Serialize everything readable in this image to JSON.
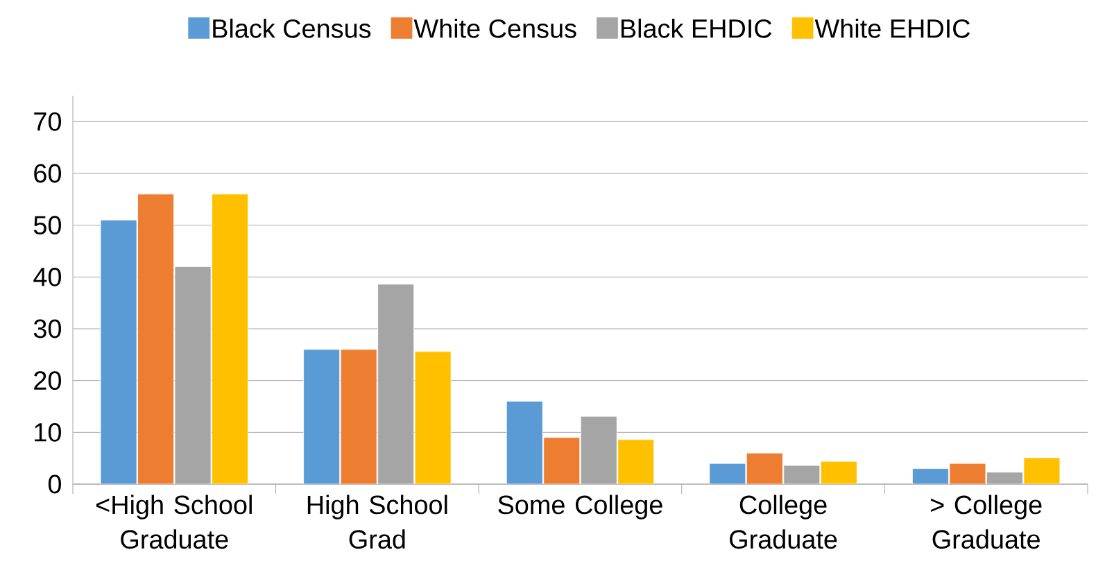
{
  "chart_data": {
    "type": "bar",
    "categories": [
      "<High School Graduate",
      "High School Grad",
      "Some College",
      "College Graduate",
      "> College Graduate"
    ],
    "series": [
      {
        "name": "Black Census",
        "color": "#5b9bd5",
        "values": [
          51,
          26,
          16,
          4,
          3
        ]
      },
      {
        "name": "White Census",
        "color": "#ed7d31",
        "values": [
          56,
          26,
          9,
          6,
          4
        ]
      },
      {
        "name": "Black EHDIC",
        "color": "#a5a5a5",
        "values": [
          42,
          38.6,
          13.1,
          3.6,
          2.3
        ]
      },
      {
        "name": "White EHDIC",
        "color": "#ffc000",
        "values": [
          56,
          25.6,
          8.6,
          4.4,
          5.1
        ]
      }
    ],
    "ylim": [
      0,
      75
    ],
    "yticks": [
      0,
      10,
      20,
      30,
      40,
      50,
      60,
      70
    ],
    "grid": "y",
    "legend": "top"
  }
}
